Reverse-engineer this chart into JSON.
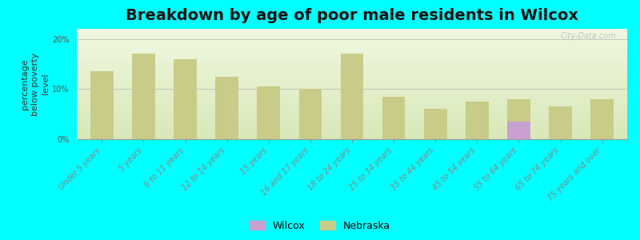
{
  "title": "Breakdown by age of poor male residents in Wilcox",
  "ylabel": "percentage\nbelow poverty\nlevel",
  "background_color": "#00FFFF",
  "plot_bg_color_top": "#d8e8b8",
  "plot_bg_color_bottom": "#f0f8e0",
  "categories": [
    "Under 5 years",
    "5 years",
    "6 to 11 years",
    "12 to 14 years",
    "15 years",
    "16 and 17 years",
    "18 to 24 years",
    "25 to 34 years",
    "35 to 44 years",
    "45 to 54 years",
    "55 to 64 years",
    "65 to 74 years",
    "75 years and over"
  ],
  "nebraska_values": [
    13.5,
    17.0,
    16.0,
    12.5,
    10.5,
    10.0,
    17.0,
    8.5,
    6.0,
    7.5,
    8.0,
    6.5,
    8.0
  ],
  "wilcox_values": [
    0,
    0,
    0,
    0,
    0,
    0,
    0,
    0,
    0,
    0,
    3.5,
    0,
    0
  ],
  "nebraska_color": "#c8cc88",
  "wilcox_color": "#c8a0d0",
  "ylim": [
    0,
    22
  ],
  "yticks": [
    0,
    10,
    20
  ],
  "ytick_labels": [
    "0%",
    "10%",
    "20%"
  ],
  "bar_width": 0.55,
  "title_fontsize": 14,
  "axis_label_fontsize": 8,
  "tick_label_fontsize": 7,
  "watermark": "City-Data.com",
  "legend_labels": [
    "Wilcox",
    "Nebraska"
  ]
}
